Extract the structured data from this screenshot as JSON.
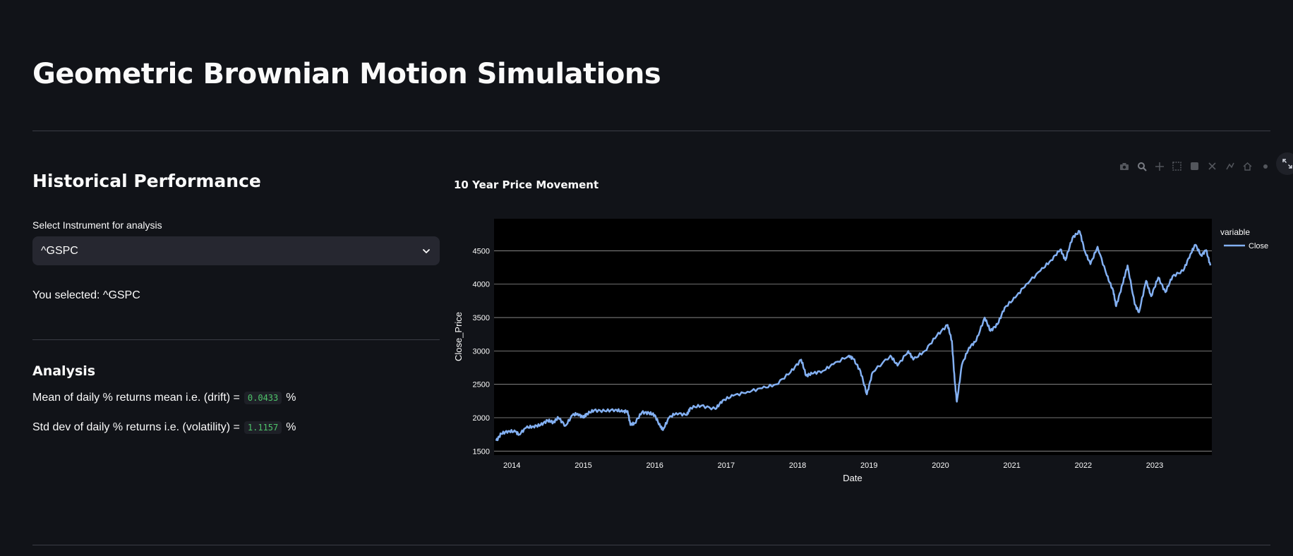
{
  "page": {
    "title": "Geometric Brownian Motion Simulations"
  },
  "historical": {
    "heading": "Historical Performance",
    "select_label": "Select Instrument for analysis",
    "select_value": "^GSPC",
    "you_selected": "You selected: ^GSPC"
  },
  "analysis": {
    "heading": "Analysis",
    "drift_prefix": "Mean of daily % returns mean i.e. (drift) =",
    "drift_value": "0.0433",
    "drift_suffix": "%",
    "vol_prefix": "Std dev of daily % returns i.e. (volatility) =",
    "vol_value": "1.1157",
    "vol_suffix": "%"
  },
  "toolbar": {
    "icons": [
      "camera-icon",
      "zoom-icon",
      "pan-icon",
      "box-select-icon",
      "lasso-select-icon",
      "zoom-in-icon",
      "zoom-out-icon",
      "autoscale-icon",
      "reset-axes-icon",
      "plotly-logo-icon"
    ],
    "fullscreen_icon": "fullscreen-icon"
  },
  "colors": {
    "background": "#111318",
    "plot_background": "#000000",
    "line": "#83b0f2",
    "code_text": "#4ec36a"
  },
  "chart_data": {
    "type": "line",
    "title": "10 Year Price Movement",
    "xlabel": "Date",
    "ylabel": "Close_Price",
    "legend_title": "variable",
    "legend_position": "right",
    "grid": "horizontal",
    "xlim": [
      2013.75,
      2023.8
    ],
    "ylim": [
      1440,
      4980
    ],
    "x_ticks": [
      2014,
      2015,
      2016,
      2017,
      2018,
      2019,
      2020,
      2021,
      2022,
      2023
    ],
    "x_tick_labels": [
      "2014",
      "2015",
      "2016",
      "2017",
      "2018",
      "2019",
      "2020",
      "2021",
      "2022",
      "2023"
    ],
    "y_ticks": [
      1500,
      2000,
      2500,
      3000,
      3500,
      4000,
      4500
    ],
    "y_tick_labels": [
      "1500",
      "2000",
      "2500",
      "3000",
      "3500",
      "4000",
      "4500"
    ],
    "series": [
      {
        "name": "Close",
        "color": "#83b0f2",
        "points": [
          [
            2013.78,
            1655
          ],
          [
            2013.85,
            1760
          ],
          [
            2013.95,
            1800
          ],
          [
            2014.05,
            1790
          ],
          [
            2014.1,
            1750
          ],
          [
            2014.2,
            1850
          ],
          [
            2014.3,
            1870
          ],
          [
            2014.4,
            1890
          ],
          [
            2014.5,
            1960
          ],
          [
            2014.58,
            1930
          ],
          [
            2014.65,
            2000
          ],
          [
            2014.75,
            1880
          ],
          [
            2014.85,
            2040
          ],
          [
            2014.92,
            2060
          ],
          [
            2015.0,
            2000
          ],
          [
            2015.05,
            2060
          ],
          [
            2015.15,
            2110
          ],
          [
            2015.3,
            2100
          ],
          [
            2015.45,
            2120
          ],
          [
            2015.55,
            2090
          ],
          [
            2015.62,
            2100
          ],
          [
            2015.66,
            1890
          ],
          [
            2015.72,
            1920
          ],
          [
            2015.82,
            2080
          ],
          [
            2015.92,
            2070
          ],
          [
            2016.0,
            2040
          ],
          [
            2016.08,
            1860
          ],
          [
            2016.12,
            1830
          ],
          [
            2016.2,
            2000
          ],
          [
            2016.3,
            2070
          ],
          [
            2016.45,
            2040
          ],
          [
            2016.5,
            2150
          ],
          [
            2016.65,
            2180
          ],
          [
            2016.85,
            2130
          ],
          [
            2016.95,
            2260
          ],
          [
            2017.1,
            2330
          ],
          [
            2017.3,
            2390
          ],
          [
            2017.5,
            2440
          ],
          [
            2017.7,
            2500
          ],
          [
            2017.9,
            2680
          ],
          [
            2018.05,
            2870
          ],
          [
            2018.12,
            2630
          ],
          [
            2018.2,
            2660
          ],
          [
            2018.35,
            2700
          ],
          [
            2018.5,
            2800
          ],
          [
            2018.72,
            2930
          ],
          [
            2018.78,
            2880
          ],
          [
            2018.88,
            2700
          ],
          [
            2018.97,
            2350
          ],
          [
            2019.05,
            2680
          ],
          [
            2019.3,
            2930
          ],
          [
            2019.4,
            2780
          ],
          [
            2019.55,
            3000
          ],
          [
            2019.62,
            2870
          ],
          [
            2019.78,
            3000
          ],
          [
            2019.95,
            3230
          ],
          [
            2020.1,
            3390
          ],
          [
            2020.16,
            3150
          ],
          [
            2020.2,
            2550
          ],
          [
            2020.23,
            2240
          ],
          [
            2020.3,
            2790
          ],
          [
            2020.4,
            3050
          ],
          [
            2020.5,
            3150
          ],
          [
            2020.62,
            3500
          ],
          [
            2020.7,
            3300
          ],
          [
            2020.8,
            3400
          ],
          [
            2020.9,
            3650
          ],
          [
            2021.05,
            3800
          ],
          [
            2021.2,
            4000
          ],
          [
            2021.4,
            4200
          ],
          [
            2021.55,
            4360
          ],
          [
            2021.68,
            4520
          ],
          [
            2021.75,
            4360
          ],
          [
            2021.85,
            4700
          ],
          [
            2021.95,
            4790
          ],
          [
            2022.02,
            4500
          ],
          [
            2022.1,
            4300
          ],
          [
            2022.2,
            4560
          ],
          [
            2022.33,
            4130
          ],
          [
            2022.42,
            3900
          ],
          [
            2022.46,
            3670
          ],
          [
            2022.55,
            4000
          ],
          [
            2022.62,
            4280
          ],
          [
            2022.72,
            3700
          ],
          [
            2022.78,
            3580
          ],
          [
            2022.88,
            4050
          ],
          [
            2022.95,
            3820
          ],
          [
            2023.05,
            4100
          ],
          [
            2023.15,
            3880
          ],
          [
            2023.25,
            4120
          ],
          [
            2023.4,
            4200
          ],
          [
            2023.5,
            4450
          ],
          [
            2023.57,
            4590
          ],
          [
            2023.65,
            4430
          ],
          [
            2023.72,
            4510
          ],
          [
            2023.78,
            4280
          ]
        ]
      }
    ]
  }
}
